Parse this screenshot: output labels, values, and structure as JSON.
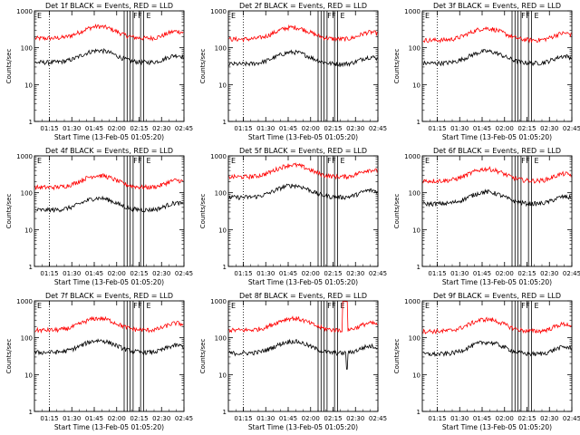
{
  "chart_data": [
    {
      "type": "line",
      "title": "Det 1f BLACK = Events, RED = LLD",
      "xlabel": "Start Time (13-Feb-05 01:05:20)",
      "ylabel": "Counts/sec",
      "yscale": "log",
      "ylim": [
        1,
        1000
      ],
      "xlim": [
        "01:05",
        "02:45"
      ],
      "xticks": [
        "01:15",
        "01:30",
        "01:45",
        "02:00",
        "02:15",
        "02:30",
        "02:45"
      ],
      "yticks": [
        "1",
        "10",
        "100",
        "1000"
      ],
      "grid": false,
      "dotted_marker": "01:15",
      "markers": [
        "02:05",
        "02:07",
        "02:09",
        "02:11",
        "02:16",
        "02:18"
      ],
      "marker_labels": [
        "E",
        "F",
        "F",
        "E"
      ],
      "series": [
        {
          "color": "#ff0000",
          "base": 180,
          "spike": false,
          "drop": false
        },
        {
          "color": "#000000",
          "base": 40,
          "spike": false,
          "drop": false
        }
      ]
    },
    {
      "type": "line",
      "title": "Det 2f BLACK = Events, RED = LLD",
      "xlabel": "Start Time (13-Feb-05 01:05:20)",
      "ylabel": "Counts/sec",
      "yscale": "log",
      "ylim": [
        1,
        1000
      ],
      "xlim": [
        "01:05",
        "02:45"
      ],
      "xticks": [
        "01:15",
        "01:30",
        "01:45",
        "02:00",
        "02:15",
        "02:30",
        "02:45"
      ],
      "yticks": [
        "1",
        "10",
        "100",
        "1000"
      ],
      "grid": false,
      "dotted_marker": "01:15",
      "markers": [
        "02:05",
        "02:07",
        "02:09",
        "02:11",
        "02:16",
        "02:18"
      ],
      "marker_labels": [
        "E",
        "F",
        "F",
        "E"
      ],
      "series": [
        {
          "color": "#ff0000",
          "base": 170,
          "spike": false,
          "drop": false
        },
        {
          "color": "#000000",
          "base": 36,
          "spike": false,
          "drop": false
        }
      ]
    },
    {
      "type": "line",
      "title": "Det 3f BLACK = Events, RED = LLD",
      "xlabel": "Start Time (13-Feb-05 01:05:20)",
      "ylabel": "Counts/sec",
      "yscale": "log",
      "ylim": [
        1,
        1000
      ],
      "xlim": [
        "01:05",
        "02:45"
      ],
      "xticks": [
        "01:15",
        "01:30",
        "01:45",
        "02:00",
        "02:15",
        "02:30",
        "02:45"
      ],
      "yticks": [
        "1",
        "10",
        "100",
        "1000"
      ],
      "grid": false,
      "dotted_marker": "01:15",
      "markers": [
        "02:05",
        "02:07",
        "02:09",
        "02:11",
        "02:16",
        "02:18"
      ],
      "marker_labels": [
        "E",
        "F",
        "F",
        "E"
      ],
      "series": [
        {
          "color": "#ff0000",
          "base": 160,
          "spike": false,
          "drop": false
        },
        {
          "color": "#000000",
          "base": 38,
          "spike": false,
          "drop": false
        }
      ]
    },
    {
      "type": "line",
      "title": "Det 4f BLACK = Events, RED = LLD",
      "xlabel": "Start Time (13-Feb-05 01:05:20)",
      "ylabel": "Counts/sec",
      "yscale": "log",
      "ylim": [
        1,
        1000
      ],
      "xlim": [
        "01:05",
        "02:45"
      ],
      "xticks": [
        "01:15",
        "01:30",
        "01:45",
        "02:00",
        "02:15",
        "02:30",
        "02:45"
      ],
      "yticks": [
        "1",
        "10",
        "100",
        "1000"
      ],
      "grid": false,
      "dotted_marker": "01:15",
      "markers": [
        "02:05",
        "02:07",
        "02:09",
        "02:11",
        "02:16",
        "02:18"
      ],
      "marker_labels": [
        "E",
        "F",
        "F",
        "E"
      ],
      "series": [
        {
          "color": "#ff0000",
          "base": 140,
          "spike": false,
          "drop": false
        },
        {
          "color": "#000000",
          "base": 34,
          "spike": false,
          "drop": false
        }
      ]
    },
    {
      "type": "line",
      "title": "Det 5f BLACK = Events, RED = LLD",
      "xlabel": "Start Time (13-Feb-05 01:05:20)",
      "ylabel": "Counts/sec",
      "yscale": "log",
      "ylim": [
        1,
        1000
      ],
      "xlim": [
        "01:05",
        "02:45"
      ],
      "xticks": [
        "01:15",
        "01:30",
        "01:45",
        "02:00",
        "02:15",
        "02:30",
        "02:45"
      ],
      "yticks": [
        "1",
        "10",
        "100",
        "1000"
      ],
      "grid": false,
      "dotted_marker": "01:15",
      "markers": [
        "02:05",
        "02:07",
        "02:09",
        "02:11",
        "02:16",
        "02:18"
      ],
      "marker_labels": [
        "E",
        "F",
        "F",
        "E"
      ],
      "series": [
        {
          "color": "#ff0000",
          "base": 270,
          "spike": false,
          "drop": false
        },
        {
          "color": "#000000",
          "base": 75,
          "spike": false,
          "drop": false
        }
      ]
    },
    {
      "type": "line",
      "title": "Det 6f BLACK = Events, RED = LLD",
      "xlabel": "Start Time (13-Feb-05 01:05:20)",
      "ylabel": "Counts/sec",
      "yscale": "log",
      "ylim": [
        1,
        1000
      ],
      "xlim": [
        "01:05",
        "02:45"
      ],
      "xticks": [
        "01:15",
        "01:30",
        "01:45",
        "02:00",
        "02:15",
        "02:30",
        "02:45"
      ],
      "yticks": [
        "1",
        "10",
        "100",
        "1000"
      ],
      "grid": false,
      "dotted_marker": "01:15",
      "markers": [
        "02:05",
        "02:07",
        "02:09",
        "02:11",
        "02:16",
        "02:18"
      ],
      "marker_labels": [
        "E",
        "F",
        "F",
        "E"
      ],
      "series": [
        {
          "color": "#ff0000",
          "base": 210,
          "spike": false,
          "drop": false
        },
        {
          "color": "#000000",
          "base": 50,
          "spike": false,
          "drop": false
        }
      ]
    },
    {
      "type": "line",
      "title": "Det 7f BLACK = Events, RED = LLD",
      "xlabel": "Start Time (13-Feb-05 01:05:20)",
      "ylabel": "Counts/sec",
      "yscale": "log",
      "ylim": [
        1,
        1000
      ],
      "xlim": [
        "01:05",
        "02:45"
      ],
      "xticks": [
        "01:15",
        "01:30",
        "01:45",
        "02:00",
        "02:15",
        "02:30",
        "02:45"
      ],
      "yticks": [
        "1",
        "10",
        "100",
        "1000"
      ],
      "grid": false,
      "dotted_marker": "01:15",
      "markers": [
        "02:05",
        "02:07",
        "02:09",
        "02:11",
        "02:16",
        "02:18"
      ],
      "marker_labels": [
        "E",
        "F",
        "F",
        "E"
      ],
      "series": [
        {
          "color": "#ff0000",
          "base": 160,
          "spike": false,
          "drop": false
        },
        {
          "color": "#000000",
          "base": 40,
          "spike": false,
          "drop": false
        }
      ]
    },
    {
      "type": "line",
      "title": "Det 8f BLACK = Events, RED = LLD",
      "xlabel": "Start Time (13-Feb-05 01:05:20)",
      "ylabel": "Counts/sec",
      "yscale": "log",
      "ylim": [
        1,
        1000
      ],
      "xlim": [
        "01:05",
        "02:45"
      ],
      "xticks": [
        "01:15",
        "01:30",
        "01:45",
        "02:00",
        "02:15",
        "02:30",
        "02:45"
      ],
      "yticks": [
        "1",
        "10",
        "100",
        "1000"
      ],
      "grid": false,
      "dotted_marker": "01:15",
      "markers": [
        "02:05",
        "02:07",
        "02:09",
        "02:11",
        "02:16",
        "02:18"
      ],
      "marker_labels": [
        "E",
        "F",
        "F",
        "E"
      ],
      "series": [
        {
          "color": "#ff0000",
          "base": 160,
          "spike": true,
          "drop": false
        },
        {
          "color": "#000000",
          "base": 38,
          "spike": false,
          "drop": true
        }
      ]
    },
    {
      "type": "line",
      "title": "Det 9f BLACK = Events, RED = LLD",
      "xlabel": "Start Time (13-Feb-05 01:05:20)",
      "ylabel": "Counts/sec",
      "yscale": "log",
      "ylim": [
        1,
        1000
      ],
      "xlim": [
        "01:05",
        "02:45"
      ],
      "xticks": [
        "01:15",
        "01:30",
        "01:45",
        "02:00",
        "02:15",
        "02:30",
        "02:45"
      ],
      "yticks": [
        "1",
        "10",
        "100",
        "1000"
      ],
      "grid": false,
      "dotted_marker": "01:15",
      "markers": [
        "02:05",
        "02:07",
        "02:09",
        "02:11",
        "02:16",
        "02:18"
      ],
      "marker_labels": [
        "E",
        "F",
        "F",
        "E"
      ],
      "series": [
        {
          "color": "#ff0000",
          "base": 150,
          "spike": false,
          "drop": false
        },
        {
          "color": "#000000",
          "base": 36,
          "spike": false,
          "drop": false
        }
      ]
    }
  ]
}
